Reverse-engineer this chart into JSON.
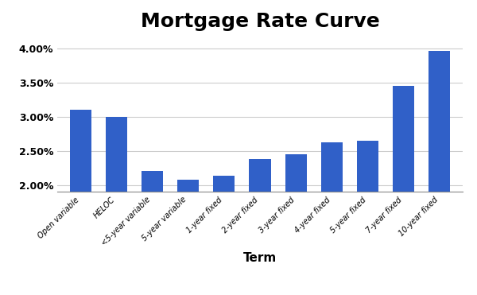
{
  "title": "Mortgage Rate Curve",
  "xlabel": "Term",
  "categories": [
    "Open variable",
    "HELOC",
    "<5-year variable",
    "5-year variable",
    "1-year fixed",
    "2-year fixed",
    "3-year fixed",
    "4-year fixed",
    "5-year fixed",
    "7-year fixed",
    "10-year fixed"
  ],
  "values": [
    0.031,
    0.03,
    0.022,
    0.0208,
    0.0213,
    0.0238,
    0.0245,
    0.0263,
    0.0265,
    0.0345,
    0.0397
  ],
  "bar_color": "#3060C8",
  "ylim_min": 0.019,
  "ylim_max": 0.0415,
  "yticks": [
    0.02,
    0.025,
    0.03,
    0.035,
    0.04
  ],
  "ytick_labels": [
    "2.00%",
    "2.50%",
    "3.00%",
    "3.50%",
    "4.00%"
  ],
  "title_fontsize": 18,
  "xlabel_fontsize": 11,
  "xtick_fontsize": 7,
  "ytick_fontsize": 9,
  "background_color": "#ffffff",
  "grid_color": "#cccccc",
  "bar_width": 0.6
}
